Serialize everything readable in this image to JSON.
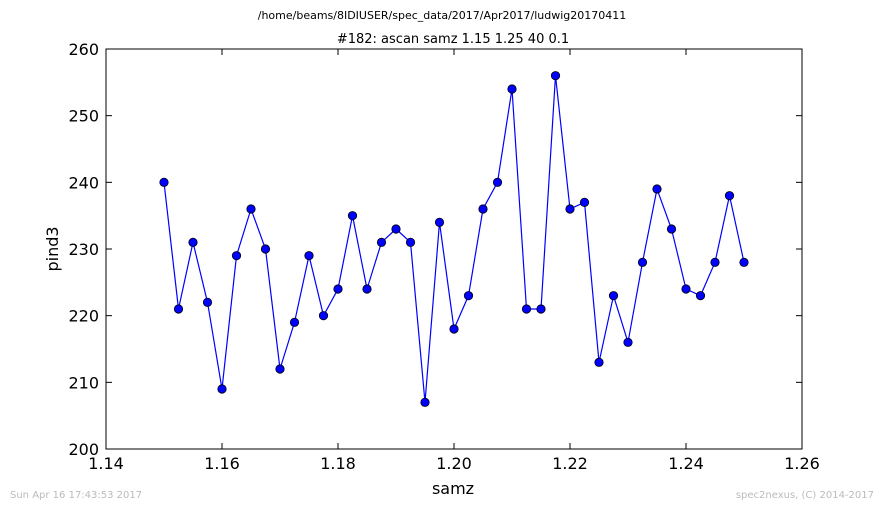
{
  "header": {
    "path": "/home/beams/8IDIUSER/spec_data/2017/Apr2017/ludwig20170411"
  },
  "footer": {
    "timestamp": "Sun Apr 16 17:43:53 2017",
    "credit": "spec2nexus, (C) 2014-2017"
  },
  "colors": {
    "line": "#0000ff",
    "marker_fill": "#0000ff",
    "marker_edge": "#000000"
  },
  "chart_data": {
    "type": "line",
    "title": "#182: ascan  samz 1.15 1.25  40 0.1",
    "xlabel": "samz",
    "ylabel": "pind3",
    "xlim": [
      1.14,
      1.26
    ],
    "ylim": [
      200,
      260
    ],
    "xticks": [
      "1.14",
      "1.16",
      "1.18",
      "1.20",
      "1.22",
      "1.24",
      "1.26"
    ],
    "yticks": [
      "200",
      "210",
      "220",
      "230",
      "240",
      "250",
      "260"
    ],
    "grid": false,
    "series": [
      {
        "x": [
          1.15,
          1.1525,
          1.155,
          1.1575,
          1.16,
          1.1625,
          1.165,
          1.1675,
          1.17,
          1.1725,
          1.175,
          1.1775,
          1.18,
          1.1825,
          1.185,
          1.1875,
          1.19,
          1.1925,
          1.195,
          1.1975,
          1.2,
          1.2025,
          1.205,
          1.2075,
          1.21,
          1.2125,
          1.215,
          1.2175,
          1.22,
          1.2225,
          1.225,
          1.2275,
          1.23,
          1.2325,
          1.235,
          1.2375,
          1.24,
          1.2425,
          1.245,
          1.2475,
          1.25
        ],
        "y": [
          240,
          221,
          231,
          222,
          209,
          229,
          236,
          230,
          212,
          219,
          229,
          220,
          224,
          235,
          224,
          231,
          233,
          231,
          207,
          234,
          218,
          223,
          236,
          240,
          254,
          221,
          221,
          256,
          236,
          237,
          213,
          223,
          216,
          228,
          239,
          233,
          224,
          223,
          228,
          238,
          228
        ]
      }
    ]
  }
}
